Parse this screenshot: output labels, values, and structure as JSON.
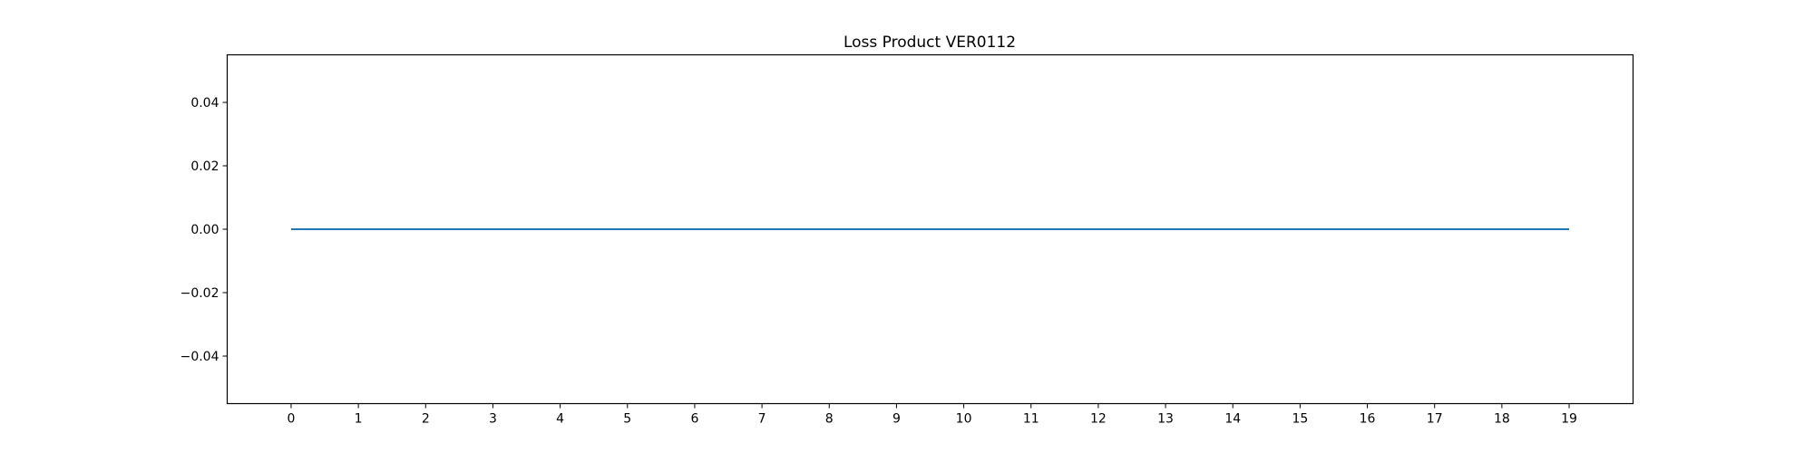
{
  "chart_data": {
    "type": "line",
    "title": "Loss Product VER0112",
    "xlabel": "",
    "ylabel": "",
    "x": [
      0,
      1,
      2,
      3,
      4,
      5,
      6,
      7,
      8,
      9,
      10,
      11,
      12,
      13,
      14,
      15,
      16,
      17,
      18,
      19
    ],
    "series": [
      {
        "values": [
          0,
          0,
          0,
          0,
          0,
          0,
          0,
          0,
          0,
          0,
          0,
          0,
          0,
          0,
          0,
          0,
          0,
          0,
          0,
          0
        ],
        "color": "#1f77b4"
      }
    ],
    "xlim": [
      -0.95,
      19.95
    ],
    "ylim": [
      -0.055,
      0.055
    ],
    "x_ticks": [
      0,
      1,
      2,
      3,
      4,
      5,
      6,
      7,
      8,
      9,
      10,
      11,
      12,
      13,
      14,
      15,
      16,
      17,
      18,
      19
    ],
    "x_tick_labels": [
      "0",
      "1",
      "2",
      "3",
      "4",
      "5",
      "6",
      "7",
      "8",
      "9",
      "10",
      "11",
      "12",
      "13",
      "14",
      "15",
      "16",
      "17",
      "18",
      "19"
    ],
    "y_ticks": [
      0.04,
      0.02,
      0.0,
      -0.02,
      -0.04
    ],
    "y_tick_labels": [
      "0.04",
      "0.02",
      "0.00",
      "−0.02",
      "−0.04"
    ],
    "grid": false,
    "legend": "none"
  }
}
